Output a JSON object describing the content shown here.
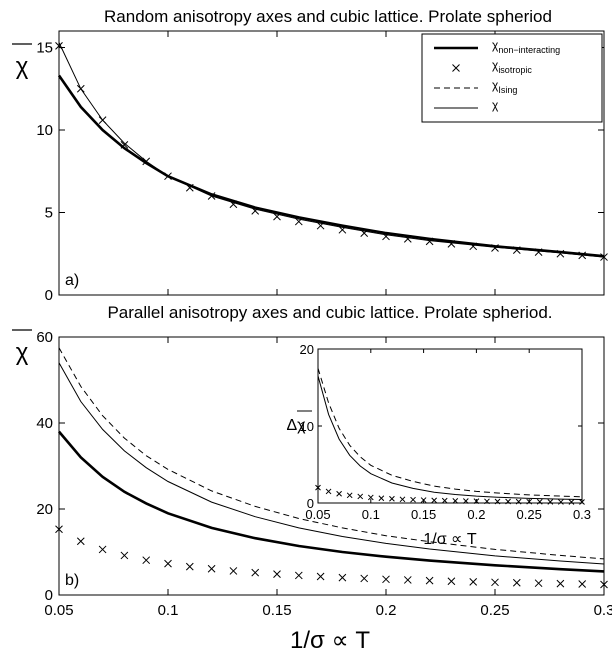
{
  "chart_data": [
    {
      "type": "line",
      "title": "Random  anisotropy axes and cubic lattice. Prolate spheriod",
      "xlabel": "",
      "ylabel": "χ",
      "panel_label": "a)",
      "xlim": [
        0.05,
        0.3
      ],
      "ylim": [
        0,
        16
      ],
      "xticks": [
        0.05,
        0.1,
        0.15,
        0.2,
        0.25,
        0.3
      ],
      "xtick_labels": [
        "",
        "",
        "",
        "",
        "",
        ""
      ],
      "yticks": [
        0,
        5,
        10,
        15
      ],
      "ytick_labels": [
        "0",
        "5",
        "10",
        "15"
      ],
      "legend_position": "top-right",
      "legend": [
        {
          "symbol": "χ",
          "sub": "non−interacting",
          "style": "thick"
        },
        {
          "symbol": "χ",
          "sub": "isotropic",
          "style": "cross"
        },
        {
          "symbol": "χ",
          "sub": "Ising",
          "style": "dashed"
        },
        {
          "symbol": "χ",
          "sub": "",
          "style": "thin"
        }
      ],
      "series": [
        {
          "style": "thick",
          "x": [
            0.05,
            0.06,
            0.07,
            0.08,
            0.09,
            0.1,
            0.12,
            0.14,
            0.16,
            0.18,
            0.2,
            0.22,
            0.25,
            0.28,
            0.3
          ],
          "y": [
            13.3,
            11.4,
            10.0,
            8.9,
            8.0,
            7.2,
            6.1,
            5.3,
            4.7,
            4.2,
            3.75,
            3.4,
            2.95,
            2.6,
            2.35
          ]
        },
        {
          "style": "thin",
          "x": [
            0.05,
            0.06,
            0.07,
            0.08,
            0.09,
            0.1,
            0.12,
            0.14,
            0.16,
            0.18,
            0.2,
            0.22,
            0.25,
            0.28,
            0.3
          ],
          "y": [
            15.3,
            12.5,
            10.6,
            9.2,
            8.1,
            7.2,
            6.0,
            5.2,
            4.6,
            4.1,
            3.65,
            3.3,
            2.9,
            2.55,
            2.3
          ]
        },
        {
          "style": "cross",
          "x": [
            0.05,
            0.06,
            0.07,
            0.08,
            0.09,
            0.1,
            0.11,
            0.12,
            0.13,
            0.14,
            0.15,
            0.16,
            0.17,
            0.18,
            0.19,
            0.2,
            0.21,
            0.22,
            0.23,
            0.24,
            0.25,
            0.26,
            0.27,
            0.28,
            0.29,
            0.3
          ],
          "y": [
            15.1,
            12.5,
            10.6,
            9.1,
            8.1,
            7.2,
            6.5,
            6.0,
            5.5,
            5.1,
            4.75,
            4.45,
            4.2,
            3.95,
            3.75,
            3.55,
            3.4,
            3.25,
            3.1,
            2.95,
            2.85,
            2.72,
            2.6,
            2.5,
            2.4,
            2.3
          ]
        }
      ]
    },
    {
      "type": "line",
      "title": "Parallel anisotropy axes and cubic lattice. Prolate spheriod.",
      "xlabel": "1/σ ∝ T",
      "ylabel": "χ",
      "panel_label": "b)",
      "xlim": [
        0.05,
        0.3
      ],
      "ylim": [
        0,
        60
      ],
      "xticks": [
        0.05,
        0.1,
        0.15,
        0.2,
        0.25,
        0.3
      ],
      "xtick_labels": [
        "0.05",
        "0.1",
        "0.15",
        "0.2",
        "0.25",
        "0.3"
      ],
      "yticks": [
        0,
        20,
        40,
        60
      ],
      "ytick_labels": [
        "0",
        "20",
        "40",
        "60"
      ],
      "series": [
        {
          "style": "thick",
          "x": [
            0.05,
            0.06,
            0.07,
            0.08,
            0.09,
            0.1,
            0.12,
            0.14,
            0.16,
            0.18,
            0.2,
            0.22,
            0.25,
            0.28,
            0.3
          ],
          "y": [
            38,
            32,
            27.5,
            24,
            21.3,
            19,
            15.6,
            13.2,
            11.4,
            10,
            8.9,
            8,
            6.9,
            6,
            5.5
          ]
        },
        {
          "style": "thin",
          "x": [
            0.05,
            0.06,
            0.07,
            0.08,
            0.09,
            0.1,
            0.12,
            0.14,
            0.16,
            0.18,
            0.2,
            0.22,
            0.25,
            0.28,
            0.3
          ],
          "y": [
            54,
            45,
            38.5,
            33.5,
            29.6,
            26.4,
            21.6,
            18.2,
            15.6,
            13.6,
            12,
            10.7,
            9.1,
            7.9,
            7.2
          ]
        },
        {
          "style": "dashed",
          "x": [
            0.05,
            0.06,
            0.07,
            0.08,
            0.09,
            0.1,
            0.12,
            0.14,
            0.16,
            0.18,
            0.2,
            0.22,
            0.25,
            0.28,
            0.3
          ],
          "y": [
            57.5,
            48.5,
            41.7,
            36.5,
            32.4,
            29.2,
            24.2,
            20.6,
            17.8,
            15.6,
            13.8,
            12.4,
            10.6,
            9.2,
            8.4
          ]
        },
        {
          "style": "cross",
          "x": [
            0.05,
            0.06,
            0.07,
            0.08,
            0.09,
            0.1,
            0.11,
            0.12,
            0.13,
            0.14,
            0.15,
            0.16,
            0.17,
            0.18,
            0.19,
            0.2,
            0.21,
            0.22,
            0.23,
            0.24,
            0.25,
            0.26,
            0.27,
            0.28,
            0.29,
            0.3
          ],
          "y": [
            15.3,
            12.5,
            10.6,
            9.2,
            8.1,
            7.3,
            6.6,
            6.1,
            5.6,
            5.2,
            4.85,
            4.55,
            4.3,
            4.05,
            3.85,
            3.65,
            3.5,
            3.35,
            3.2,
            3.05,
            2.95,
            2.85,
            2.75,
            2.65,
            2.55,
            2.45
          ]
        }
      ]
    },
    {
      "type": "line",
      "title": "",
      "xlabel": "1/σ ∝ T",
      "ylabel": "Δχ",
      "xlim": [
        0.05,
        0.3
      ],
      "ylim": [
        0,
        20
      ],
      "xticks": [
        0.05,
        0.1,
        0.15,
        0.2,
        0.25,
        0.3
      ],
      "xtick_labels": [
        "0.05",
        "0.1",
        "0.15",
        "0.2",
        "0.25",
        "0.3"
      ],
      "yticks": [
        0,
        10,
        20
      ],
      "ytick_labels": [
        "0",
        "10",
        "20"
      ],
      "series": [
        {
          "style": "thin",
          "x": [
            0.05,
            0.06,
            0.07,
            0.08,
            0.09,
            0.1,
            0.12,
            0.14,
            0.16,
            0.18,
            0.2,
            0.22,
            0.25,
            0.28,
            0.3
          ],
          "y": [
            16.5,
            11.5,
            8.3,
            6.2,
            4.8,
            3.8,
            2.6,
            1.9,
            1.4,
            1.1,
            0.9,
            0.75,
            0.6,
            0.5,
            0.45
          ]
        },
        {
          "style": "dashed",
          "x": [
            0.05,
            0.06,
            0.07,
            0.08,
            0.09,
            0.1,
            0.12,
            0.14,
            0.16,
            0.18,
            0.2,
            0.22,
            0.25,
            0.28,
            0.3
          ],
          "y": [
            17.5,
            13,
            9.7,
            7.5,
            6,
            4.9,
            3.6,
            2.8,
            2.2,
            1.8,
            1.5,
            1.3,
            1.05,
            0.9,
            0.8
          ]
        },
        {
          "style": "cross",
          "x": [
            0.05,
            0.06,
            0.07,
            0.08,
            0.09,
            0.1,
            0.11,
            0.12,
            0.13,
            0.14,
            0.15,
            0.16,
            0.17,
            0.18,
            0.19,
            0.2,
            0.21,
            0.22,
            0.23,
            0.24,
            0.25,
            0.26,
            0.27,
            0.28,
            0.29,
            0.3
          ],
          "y": [
            2.0,
            1.5,
            1.2,
            1.0,
            0.85,
            0.72,
            0.62,
            0.55,
            0.48,
            0.43,
            0.38,
            0.34,
            0.31,
            0.28,
            0.26,
            0.24,
            0.22,
            0.2,
            0.19,
            0.18,
            0.17,
            0.16,
            0.15,
            0.14,
            0.13,
            0.13
          ]
        }
      ]
    }
  ]
}
